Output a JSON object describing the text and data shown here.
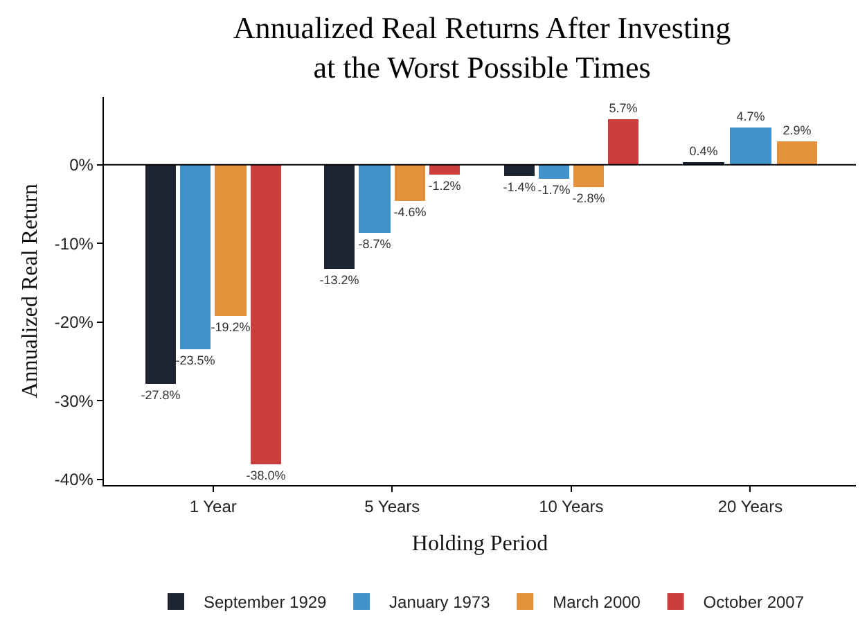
{
  "chart_data": {
    "type": "bar",
    "title": "Annualized Real Returns After Investing\nat the Worst Possible Times",
    "xlabel": "Holding Period",
    "ylabel": "Annualized Real Return",
    "categories": [
      "1 Year",
      "5 Years",
      "10 Years",
      "20 Years"
    ],
    "series": [
      {
        "name": "September 1929",
        "color": "#1b2430",
        "values": [
          -27.8,
          -13.2,
          -1.4,
          0.4
        ],
        "value_labels": [
          "-27.8%",
          "-13.2%",
          "-1.4%",
          "0.4%"
        ]
      },
      {
        "name": "January 1973",
        "color": "#4192c9",
        "values": [
          -23.5,
          -8.7,
          -1.7,
          4.7
        ],
        "value_labels": [
          "-23.5%",
          "-8.7%",
          "-1.7%",
          "4.7%"
        ]
      },
      {
        "name": "March 2000",
        "color": "#e3913a",
        "values": [
          -19.2,
          -4.6,
          -2.8,
          2.9
        ],
        "value_labels": [
          "-19.2%",
          "-4.6%",
          "-2.8%",
          "2.9%"
        ]
      },
      {
        "name": "October 2007",
        "color": "#cc3d3d",
        "values": [
          -38.0,
          -1.2,
          5.7,
          null
        ],
        "value_labels": [
          "-38.0%",
          "-1.2%",
          "5.7%",
          null
        ]
      }
    ],
    "ylim": [
      -40.7,
      8.6
    ],
    "yticks": [
      {
        "value": -40,
        "label": "-40%"
      },
      {
        "value": -30,
        "label": "-30%"
      },
      {
        "value": -20,
        "label": "-20%"
      },
      {
        "value": -10,
        "label": "-10%"
      },
      {
        "value": 0,
        "label": "0%"
      }
    ],
    "ref_lines": [
      {
        "axis": "y",
        "value": 0,
        "color": "#000000"
      }
    ],
    "grid": false,
    "legend": "bottom"
  }
}
